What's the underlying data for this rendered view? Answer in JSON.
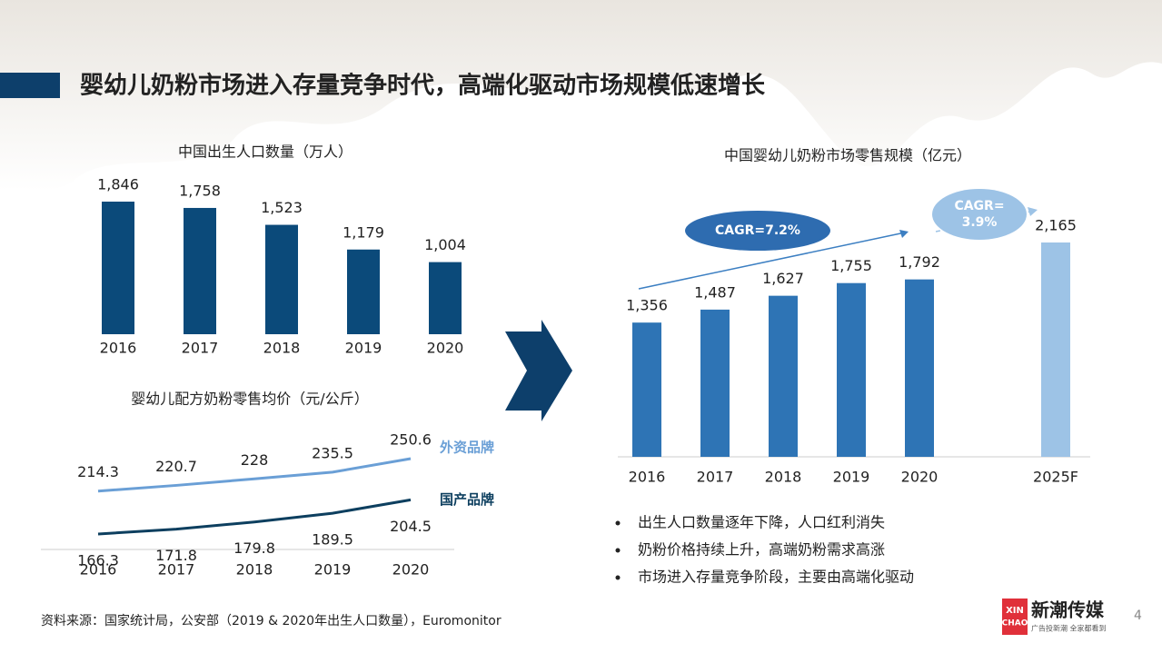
{
  "slide": {
    "title": "婴幼儿奶粉市场进入存量竞争时代，高端化驱动市场规模低速增长",
    "bullets": [
      "出生人口数量逐年下降，人口红利消失",
      "奶粉价格持续上升，高端奶粉需求高涨",
      "市场进入存量竞争阶段，主要由高端化驱动"
    ],
    "source": "资料来源：国家统计局，公安部（2019 & 2020年出生人口数量），Euromonitor",
    "page": "4",
    "logo": {
      "mark": [
        "XIN",
        "CHAO"
      ],
      "name": "新潮传媒",
      "tagline": "广告投新潮 全家都看到"
    }
  },
  "chart_data": [
    {
      "type": "bar",
      "title": "中国出生人口数量（万人）",
      "categories": [
        "2016",
        "2017",
        "2018",
        "2019",
        "2020"
      ],
      "values": [
        1846,
        1758,
        1523,
        1179,
        1004
      ],
      "value_labels": [
        "1,846",
        "1,758",
        "1,523",
        "1,179",
        "1,004"
      ],
      "color": "#0b4a7a"
    },
    {
      "type": "line",
      "title": "婴幼儿配方奶粉零售均价（元/公斤）",
      "categories": [
        "2016",
        "2017",
        "2018",
        "2019",
        "2020"
      ],
      "series": [
        {
          "name": "外资品牌",
          "color": "#6a9fd6",
          "values": [
            214.3,
            220.7,
            228,
            235.5,
            250.6
          ]
        },
        {
          "name": "国产品牌",
          "color": "#0d3f5f",
          "values": [
            166.3,
            171.8,
            179.8,
            189.5,
            204.5
          ]
        }
      ]
    },
    {
      "type": "bar",
      "title": "中国婴幼儿奶粉市场零售规模（亿元）",
      "categories": [
        "2016",
        "2017",
        "2018",
        "2019",
        "2020",
        "2025F"
      ],
      "values": [
        1356,
        1487,
        1627,
        1755,
        1792,
        2165
      ],
      "value_labels": [
        "1,356",
        "1,487",
        "1,627",
        "1,755",
        "1,792",
        "2,165"
      ],
      "colors": [
        "#2e74b5",
        "#2e74b5",
        "#2e74b5",
        "#2e74b5",
        "#2e74b5",
        "#9dc3e6"
      ],
      "annotations": [
        [
          "CAGR=7.2%"
        ],
        [
          "CAGR=",
          "3.9%"
        ]
      ]
    }
  ]
}
